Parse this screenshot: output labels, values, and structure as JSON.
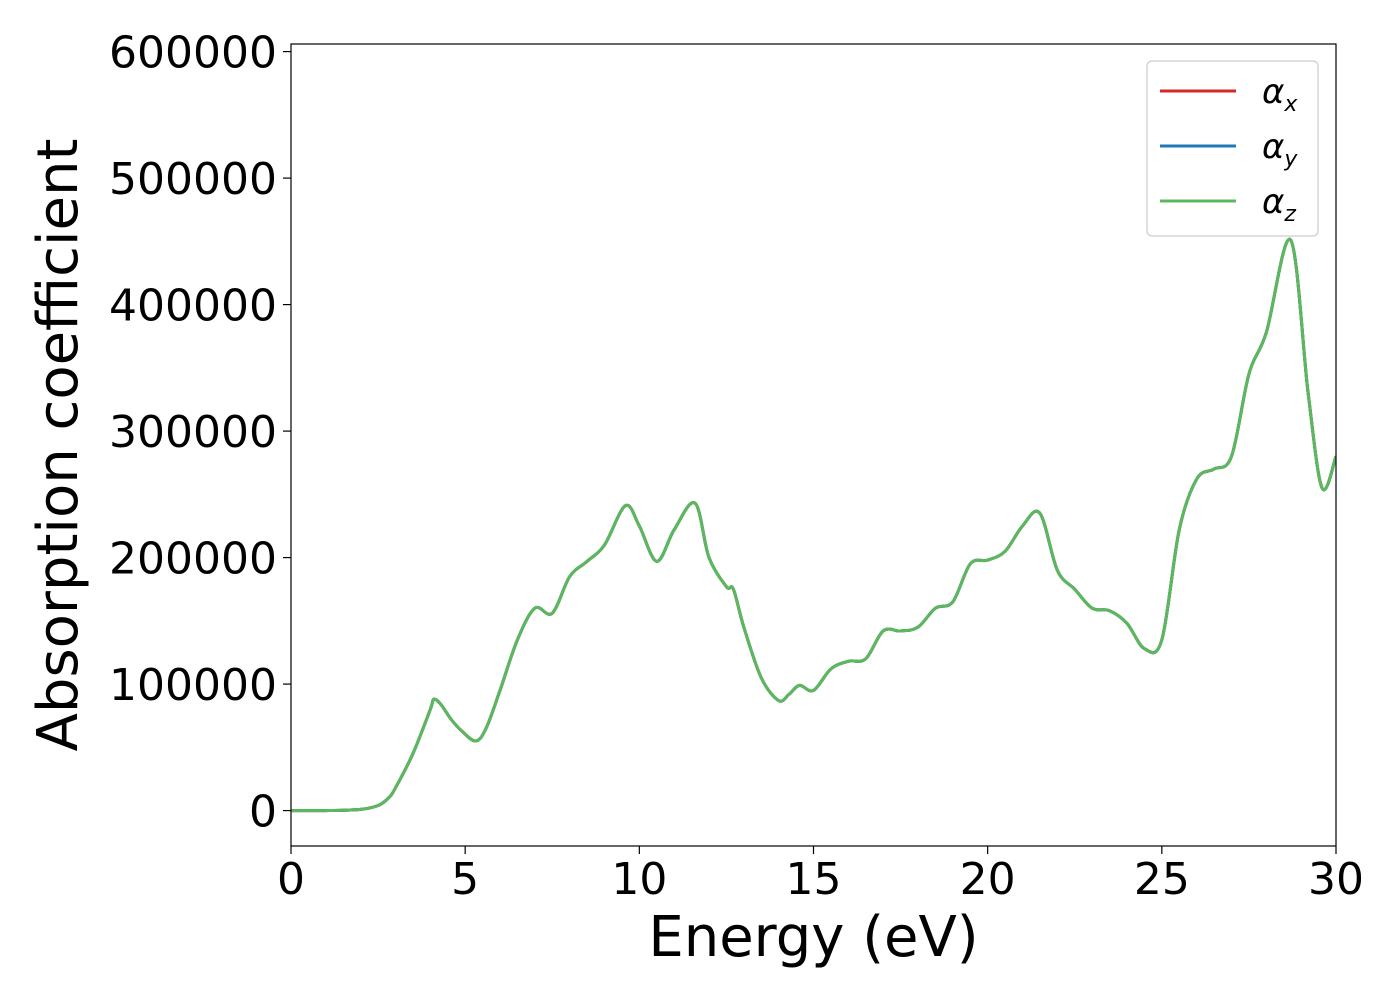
{
  "chart_data": {
    "type": "line",
    "xlabel": "Energy (eV)",
    "ylabel": "Absorption coefficient",
    "xlim": [
      0,
      30
    ],
    "ylim": [
      -28000,
      606000
    ],
    "xticks": [
      "0",
      "5",
      "10",
      "15",
      "20",
      "25",
      "30"
    ],
    "yticks": [
      "0",
      "100000",
      "200000",
      "300000",
      "400000",
      "500000",
      "600000"
    ],
    "xtick_values": [
      0,
      5,
      10,
      15,
      20,
      25,
      30
    ],
    "ytick_values": [
      0,
      100000,
      200000,
      300000,
      400000,
      500000,
      600000
    ],
    "grid": false,
    "legend_position": "top-right",
    "x": [
      0,
      1,
      2,
      2.5,
      2.8,
      3,
      3.5,
      4,
      4.1,
      4.3,
      4.6,
      4.9,
      5.3,
      5.6,
      6,
      6.5,
      7,
      7.5,
      8,
      8.5,
      9,
      9.6,
      10,
      10.5,
      11,
      11.6,
      12,
      12.5,
      12.7,
      13,
      13.5,
      14,
      14.3,
      14.6,
      15,
      15.5,
      16,
      16.5,
      17,
      17.5,
      18,
      18.5,
      19,
      19.5,
      20,
      20.5,
      21,
      21.5,
      22,
      22.5,
      23,
      23.5,
      24,
      24.5,
      25,
      25.5,
      26,
      26.5,
      27,
      27.5,
      28,
      28.7,
      29.2,
      29.6,
      30
    ],
    "series": [
      {
        "name": "αx",
        "color": "#d62728",
        "values": [
          0,
          0,
          1000,
          4000,
          10000,
          18000,
          45000,
          80000,
          88000,
          84000,
          72000,
          63000,
          55000,
          65000,
          95000,
          135000,
          160000,
          156000,
          185000,
          197000,
          210000,
          241000,
          225000,
          197000,
          222000,
          243000,
          200000,
          177000,
          175000,
          145000,
          105000,
          87000,
          92000,
          99000,
          95000,
          112000,
          118000,
          120000,
          142000,
          142000,
          145000,
          160000,
          165000,
          195000,
          198000,
          205000,
          225000,
          235000,
          190000,
          175000,
          160000,
          158000,
          148000,
          128000,
          135000,
          222000,
          262000,
          270000,
          280000,
          345000,
          378000,
          451000,
          330000,
          255000,
          280000
        ]
      },
      {
        "name": "αy",
        "color": "#1f77b4",
        "values": [
          0,
          0,
          1000,
          4000,
          10000,
          18000,
          45000,
          80000,
          88000,
          84000,
          72000,
          63000,
          55000,
          65000,
          95000,
          135000,
          160000,
          156000,
          185000,
          197000,
          210000,
          241000,
          225000,
          197000,
          222000,
          243000,
          200000,
          177000,
          175000,
          145000,
          105000,
          87000,
          92000,
          99000,
          95000,
          112000,
          118000,
          120000,
          142000,
          142000,
          145000,
          160000,
          165000,
          195000,
          198000,
          205000,
          225000,
          235000,
          190000,
          175000,
          160000,
          158000,
          148000,
          128000,
          135000,
          222000,
          262000,
          270000,
          280000,
          345000,
          378000,
          451000,
          330000,
          255000,
          280000
        ]
      },
      {
        "name": "αz",
        "color": "#5cb85c",
        "values": [
          0,
          0,
          1000,
          4000,
          10000,
          18000,
          45000,
          80000,
          88000,
          84000,
          72000,
          63000,
          55000,
          65000,
          95000,
          135000,
          160000,
          156000,
          185000,
          197000,
          210000,
          241000,
          225000,
          197000,
          222000,
          243000,
          200000,
          177000,
          175000,
          145000,
          105000,
          87000,
          92000,
          99000,
          95000,
          112000,
          118000,
          120000,
          142000,
          142000,
          145000,
          160000,
          165000,
          195000,
          198000,
          205000,
          225000,
          235000,
          190000,
          175000,
          160000,
          158000,
          148000,
          128000,
          135000,
          222000,
          262000,
          270000,
          280000,
          345000,
          378000,
          451000,
          330000,
          255000,
          280000
        ]
      }
    ],
    "legend": [
      {
        "symbol": "α",
        "sub": "x",
        "color": "#d62728"
      },
      {
        "symbol": "α",
        "sub": "y",
        "color": "#1f77b4"
      },
      {
        "symbol": "α",
        "sub": "z",
        "color": "#5cb85c"
      }
    ]
  }
}
